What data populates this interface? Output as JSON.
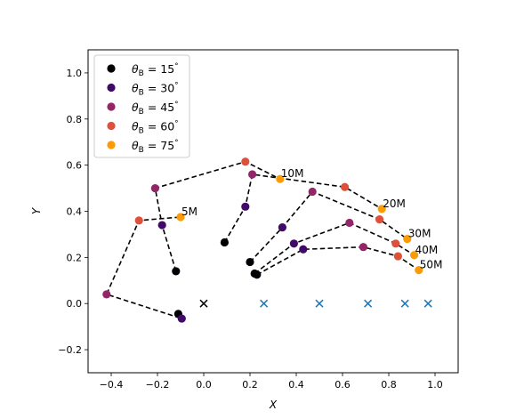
{
  "chart_data": {
    "type": "scatter",
    "xlabel": "X",
    "ylabel": "Y",
    "xlim": [
      -0.5,
      1.1
    ],
    "ylim": [
      -0.3,
      1.1
    ],
    "x_ticks": [
      -0.4,
      -0.2,
      0.0,
      0.2,
      0.4,
      0.6,
      0.8,
      1.0
    ],
    "y_ticks": [
      -0.2,
      0.0,
      0.2,
      0.4,
      0.6,
      0.8,
      1.0
    ],
    "x_tick_labels": [
      "−0.4",
      "−0.2",
      "0.0",
      "0.2",
      "0.4",
      "0.6",
      "0.8",
      "1.0"
    ],
    "y_tick_labels": [
      "−0.2",
      "0.0",
      "0.2",
      "0.4",
      "0.6",
      "0.8",
      "1.0"
    ],
    "grid": false,
    "legend_position": "top-left",
    "series": [
      {
        "name": "θB = 15°",
        "legend_prefix": "θ",
        "legend_sub": "B",
        "legend_value": " = 15",
        "legend_unit": "°",
        "color": "#000004",
        "points": [
          [
            -0.11,
            -0.045
          ],
          [
            -0.12,
            0.14
          ],
          [
            0.09,
            0.265
          ],
          [
            0.2,
            0.18
          ],
          [
            0.22,
            0.13
          ],
          [
            0.23,
            0.125
          ]
        ]
      },
      {
        "name": "θB = 30°",
        "legend_prefix": "θ",
        "legend_sub": "B",
        "legend_value": " = 30",
        "legend_unit": "°",
        "color": "#420a68",
        "points": [
          [
            -0.095,
            -0.065
          ],
          [
            -0.18,
            0.34
          ],
          [
            0.18,
            0.42
          ],
          [
            0.34,
            0.33
          ],
          [
            0.39,
            0.26
          ],
          [
            0.43,
            0.235
          ]
        ]
      },
      {
        "name": "θB = 45°",
        "legend_prefix": "θ",
        "legend_sub": "B",
        "legend_value": " = 45",
        "legend_unit": "°",
        "color": "#932667",
        "points": [
          [
            -0.42,
            0.04
          ],
          [
            -0.21,
            0.5
          ],
          [
            0.21,
            0.56
          ],
          [
            0.47,
            0.485
          ],
          [
            0.63,
            0.35
          ],
          [
            0.69,
            0.245
          ]
        ]
      },
      {
        "name": "θB = 60°",
        "legend_prefix": "θ",
        "legend_sub": "B",
        "legend_value": " = 60",
        "legend_unit": "°",
        "color": "#dd513a",
        "points": [
          [
            -0.28,
            0.36
          ],
          [
            0.18,
            0.615
          ],
          [
            0.61,
            0.505
          ],
          [
            0.76,
            0.365
          ],
          [
            0.83,
            0.26
          ],
          [
            0.84,
            0.205
          ]
        ]
      },
      {
        "name": "θB = 75°",
        "legend_prefix": "θ",
        "legend_sub": "B",
        "legend_value": " = 75",
        "legend_unit": "°",
        "color": "#fb9b06",
        "points": [
          [
            -0.1,
            0.375
          ],
          [
            0.33,
            0.54
          ],
          [
            0.77,
            0.41
          ],
          [
            0.88,
            0.28
          ],
          [
            0.91,
            0.21
          ],
          [
            0.93,
            0.145
          ]
        ]
      }
    ],
    "curves": [
      "5M",
      "10M",
      "20M",
      "30M",
      "40M",
      "50M"
    ],
    "curve_labels": [
      {
        "text": "5M",
        "x": -0.1,
        "y": 0.375
      },
      {
        "text": "10M",
        "x": 0.33,
        "y": 0.54
      },
      {
        "text": "20M",
        "x": 0.77,
        "y": 0.41
      },
      {
        "text": "30M",
        "x": 0.88,
        "y": 0.28
      },
      {
        "text": "40M",
        "x": 0.91,
        "y": 0.21
      },
      {
        "text": "50M",
        "x": 0.93,
        "y": 0.145
      }
    ],
    "origin_marker": {
      "x": 0.0,
      "y": 0.0,
      "color": "#000000"
    },
    "x_markers": {
      "color": "#1f77b4",
      "x": [
        0.26,
        0.5,
        0.71,
        0.87,
        0.97
      ],
      "y": 0.0
    }
  }
}
